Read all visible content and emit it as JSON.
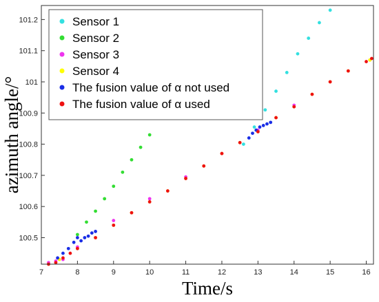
{
  "chart_data": {
    "type": "scatter",
    "xlabel": "Time/s",
    "ylabel": "azimuth angle/°",
    "xlim": [
      7.0,
      16.2
    ],
    "ylim": [
      100.415,
      101.245
    ],
    "xticks": [
      7,
      8,
      9,
      10,
      11,
      12,
      13,
      14,
      15,
      16
    ],
    "yticks": [
      100.5,
      100.6,
      100.7,
      100.8,
      100.9,
      101,
      101.1,
      101.2
    ],
    "grid": false,
    "legend_position": "top-left",
    "series": [
      {
        "name": "Sensor 1",
        "color": "#33e0e0",
        "x": [
          12.6,
          12.9,
          13.2,
          13.5,
          13.8,
          14.1,
          14.4,
          14.7,
          15.0
        ],
        "y": [
          100.8,
          100.855,
          100.91,
          100.97,
          101.03,
          101.09,
          101.14,
          101.19,
          101.23
        ]
      },
      {
        "name": "Sensor 2",
        "color": "#33dd33",
        "x": [
          8.0,
          8.25,
          8.5,
          8.75,
          9.0,
          9.25,
          9.5,
          9.75,
          10.0
        ],
        "y": [
          100.51,
          100.55,
          100.585,
          100.625,
          100.665,
          100.71,
          100.75,
          100.79,
          100.83
        ]
      },
      {
        "name": "Sensor 3",
        "color": "#ee33ee",
        "x": [
          7.2,
          7.4,
          7.6,
          8.0,
          9.0,
          10.0,
          11.0,
          12.0,
          13.0,
          14.0,
          15.0,
          16.1
        ],
        "y": [
          100.42,
          100.425,
          100.43,
          100.47,
          100.555,
          100.625,
          100.695,
          100.77,
          100.845,
          100.925,
          101.0,
          101.07
        ]
      },
      {
        "name": "Sensor 4",
        "color": "#ffff00",
        "x": [
          7.2,
          7.5,
          8.0,
          8.5,
          9.0,
          9.5,
          10.0,
          10.5,
          11.0,
          11.5,
          12.0,
          12.5,
          13.0,
          13.5,
          14.0,
          14.5,
          15.0,
          15.5,
          16.1
        ],
        "y": [
          100.415,
          100.43,
          100.465,
          100.5,
          100.54,
          100.58,
          100.615,
          100.65,
          100.69,
          100.73,
          100.77,
          100.805,
          100.84,
          100.885,
          100.92,
          100.96,
          101.0,
          101.035,
          101.07
        ]
      },
      {
        "name": "The fusion value of α not used",
        "color": "#1a2ee6",
        "x": [
          7.45,
          7.6,
          7.75,
          7.9,
          8.0,
          8.1,
          8.2,
          8.3,
          8.4,
          8.5,
          12.75,
          12.85,
          12.95,
          13.05,
          13.15,
          13.25,
          13.35
        ],
        "y": [
          100.435,
          100.45,
          100.465,
          100.485,
          100.5,
          100.49,
          100.5,
          100.505,
          100.515,
          100.52,
          100.82,
          100.835,
          100.845,
          100.855,
          100.86,
          100.865,
          100.87
        ]
      },
      {
        "name": "The fusion value of α used",
        "color": "#ee1111",
        "x": [
          7.2,
          7.4,
          7.6,
          7.8,
          8.0,
          8.5,
          9.0,
          9.5,
          10.0,
          10.5,
          11.0,
          11.5,
          12.0,
          12.5,
          13.0,
          13.5,
          14.0,
          14.5,
          15.0,
          15.5,
          16.0,
          16.15
        ],
        "y": [
          100.415,
          100.42,
          100.435,
          100.45,
          100.465,
          100.5,
          100.54,
          100.58,
          100.615,
          100.65,
          100.69,
          100.73,
          100.77,
          100.805,
          100.84,
          100.885,
          100.92,
          100.96,
          101.0,
          101.035,
          101.065,
          101.075
        ]
      }
    ]
  }
}
